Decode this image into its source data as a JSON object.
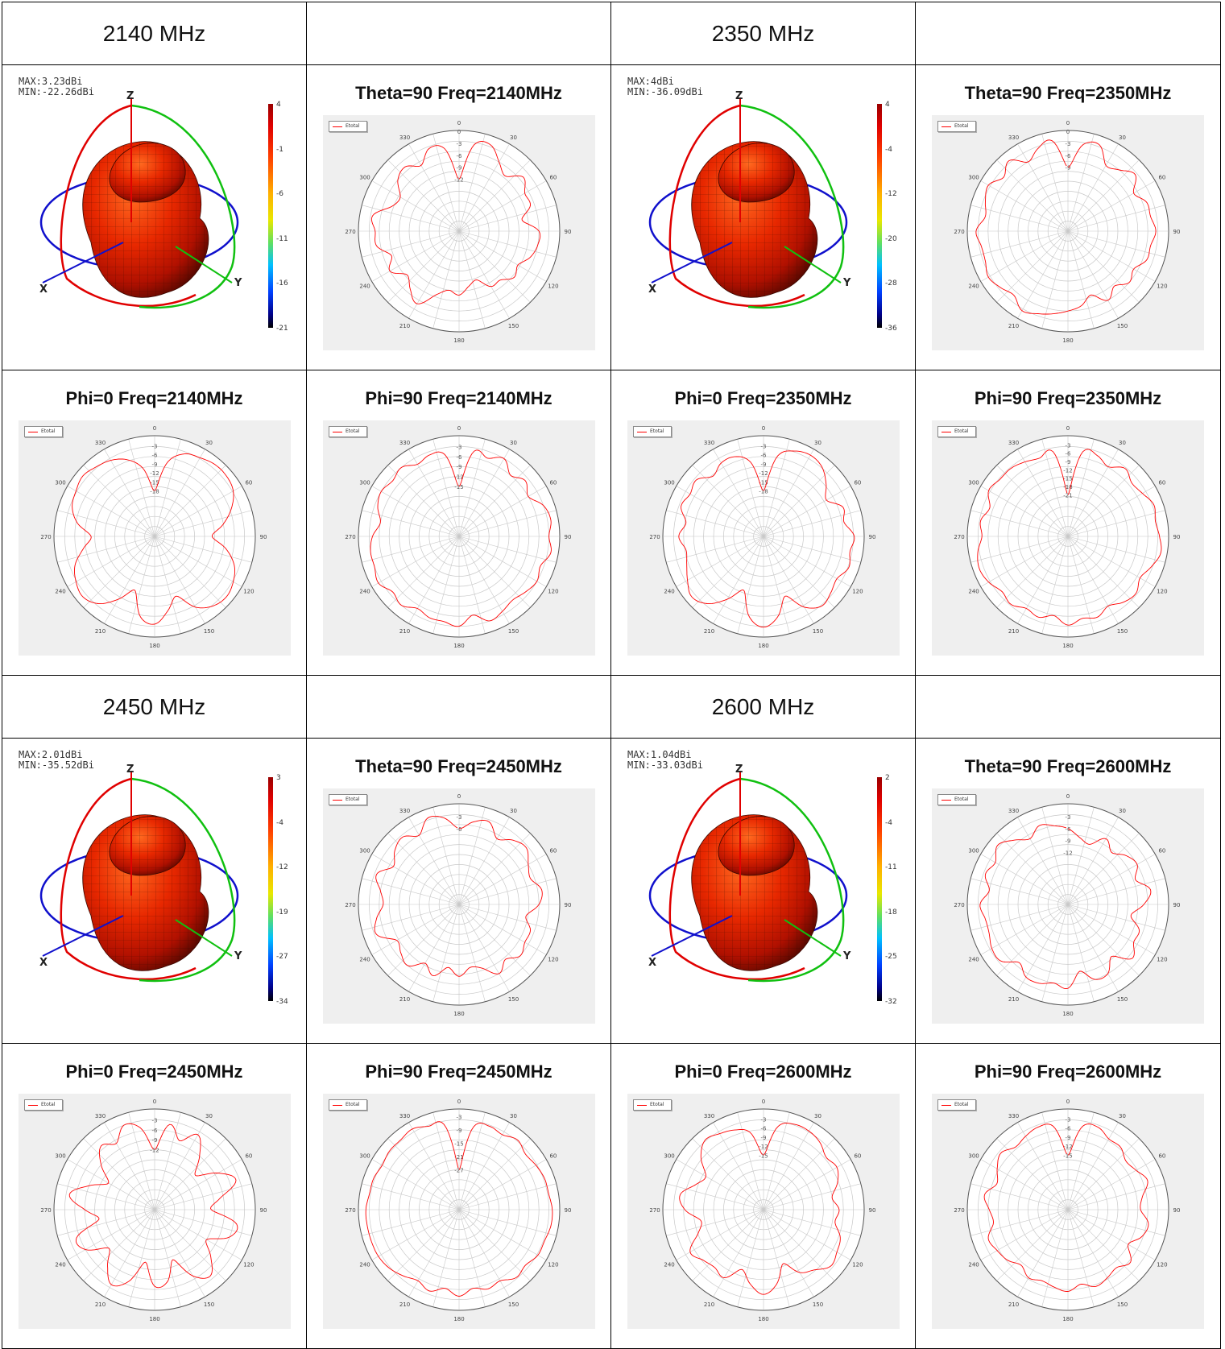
{
  "page": {
    "bands": [
      {
        "freq_label": "2140 MHz",
        "maxmin": [
          "MAX:3.23dBi",
          "MIN:-22.26dBi"
        ],
        "colorbar_ticks": [
          "4",
          "-1",
          "-6",
          "-11",
          "-16",
          "-21"
        ]
      },
      {
        "freq_label": "2350 MHz",
        "maxmin": [
          "MAX:4dBi",
          "MIN:-36.09dBi"
        ],
        "colorbar_ticks": [
          "4",
          "-4",
          "-12",
          "-20",
          "-28",
          "-36"
        ]
      },
      {
        "freq_label": "2450 MHz",
        "maxmin": [
          "MAX:2.01dBi",
          "MIN:-35.52dBi"
        ],
        "colorbar_ticks": [
          "3",
          "-4",
          "-12",
          "-19",
          "-27",
          "-34"
        ]
      },
      {
        "freq_label": "2600 MHz",
        "maxmin": [
          "MAX:1.04dBi",
          "MIN:-33.03dBi"
        ],
        "colorbar_ticks": [
          "2",
          "-4",
          "-11",
          "-18",
          "-25",
          "-32"
        ]
      }
    ],
    "axis_labels_3d": [
      "Z",
      "X",
      "Y"
    ],
    "colors": {
      "trace": "#ff0000",
      "plot_bg": "#efefef",
      "grid": "#c8c8c8",
      "z_axis": "#e00000",
      "x_axis": "#1010cc",
      "y_axis": "#10c010"
    }
  },
  "chart_data": [
    {
      "type": "line",
      "polar": true,
      "title": "Theta=90 Freq=2140MHz",
      "legend": "Etotal",
      "angle_ticks": [
        "0",
        "30",
        "60",
        "90",
        "120",
        "150",
        "180",
        "210",
        "240",
        "270",
        "300",
        "330"
      ],
      "r_ticks": [
        "0",
        "-3",
        "-6",
        "-9",
        "-12"
      ],
      "r_max": 0,
      "r_min": -25,
      "series": [
        {
          "name": "Etotal",
          "values": [
            -12,
            -3,
            -2,
            -5,
            -7,
            -4,
            -6,
            -6,
            -9,
            -5,
            -5,
            -6,
            -8,
            -7,
            -9,
            -9,
            -12,
            -11,
            -9,
            -10,
            -8,
            -4,
            -6,
            -8,
            -5,
            -7,
            -4,
            -4,
            -3,
            -7,
            -8,
            -5,
            -4,
            -6,
            -3,
            -4,
            -12
          ]
        }
      ]
    },
    {
      "type": "line",
      "polar": true,
      "title": "Theta=90 Freq=2350MHz",
      "legend": "Etotal",
      "angle_ticks": [
        "0",
        "30",
        "60",
        "90",
        "120",
        "150",
        "180",
        "210",
        "240",
        "270",
        "300",
        "330"
      ],
      "r_ticks": [
        "0",
        "-3",
        "-6",
        "-9"
      ],
      "r_max": 0,
      "r_min": -25,
      "series": [
        {
          "name": "Etotal",
          "values": [
            -9,
            -3,
            -2,
            -6,
            -5,
            -3,
            -6,
            -4,
            -4,
            -3,
            -4,
            -4,
            -6,
            -5,
            -7,
            -5,
            -8,
            -6,
            -5,
            -4,
            -3,
            -2,
            -4,
            -3,
            -2,
            -3,
            -3,
            -2,
            -4,
            -3,
            -2,
            -4,
            -2,
            -5,
            -3,
            -2,
            -9
          ]
        }
      ]
    },
    {
      "type": "line",
      "polar": true,
      "title": "Phi=0 Freq=2140MHz",
      "legend": "Etotal",
      "angle_ticks": [
        "0",
        "30",
        "60",
        "90",
        "120",
        "150",
        "180",
        "210",
        "240",
        "270",
        "300",
        "330"
      ],
      "r_ticks": [
        "-3",
        "-6",
        "-9",
        "-12",
        "-15",
        "-18"
      ],
      "r_max": 0,
      "r_min": -33,
      "series": [
        {
          "name": "Etotal",
          "values": [
            -18,
            -8,
            -4,
            -3,
            -2,
            -2,
            -3,
            -6,
            -10,
            -14,
            -9,
            -5,
            -3,
            -2,
            -3,
            -6,
            -12,
            -8,
            -4,
            -6,
            -14,
            -9,
            -4,
            -2,
            -3,
            -5,
            -9,
            -12,
            -7,
            -4,
            -3,
            -2,
            -3,
            -4,
            -6,
            -10,
            -18
          ]
        }
      ]
    },
    {
      "type": "line",
      "polar": true,
      "title": "Phi=90 Freq=2140MHz",
      "legend": "Etotal",
      "angle_ticks": [
        "0",
        "30",
        "60",
        "90",
        "120",
        "150",
        "180",
        "210",
        "240",
        "270",
        "300",
        "330"
      ],
      "r_ticks": [
        "-3",
        "-6",
        "-9",
        "-12",
        "-15"
      ],
      "r_max": 0,
      "r_min": -30,
      "series": [
        {
          "name": "Etotal",
          "values": [
            -15,
            -4,
            -5,
            -3,
            -6,
            -4,
            -6,
            -3,
            -2,
            -3,
            -2,
            -4,
            -3,
            -4,
            -5,
            -4,
            -3,
            -6,
            -3,
            -4,
            -4,
            -5,
            -3,
            -4,
            -2,
            -3,
            -3,
            -4,
            -6,
            -4,
            -3,
            -4,
            -3,
            -5,
            -4,
            -5,
            -15
          ]
        }
      ]
    },
    {
      "type": "line",
      "polar": true,
      "title": "Phi=0 Freq=2350MHz",
      "legend": "Etotal",
      "angle_ticks": [
        "0",
        "30",
        "60",
        "90",
        "120",
        "150",
        "180",
        "210",
        "240",
        "270",
        "300",
        "330"
      ],
      "r_ticks": [
        "-3",
        "-6",
        "-9",
        "-12",
        "-15",
        "-18"
      ],
      "r_max": 0,
      "r_min": -33,
      "series": [
        {
          "name": "Etotal",
          "values": [
            -18,
            -6,
            -3,
            -2,
            -3,
            -6,
            -9,
            -5,
            -6,
            -3,
            -4,
            -3,
            -5,
            -4,
            -3,
            -6,
            -12,
            -6,
            -3,
            -6,
            -14,
            -9,
            -4,
            -2,
            -4,
            -6,
            -7,
            -5,
            -7,
            -4,
            -5,
            -4,
            -7,
            -5,
            -5,
            -8,
            -18
          ]
        }
      ]
    },
    {
      "type": "line",
      "polar": true,
      "title": "Phi=90 Freq=2350MHz",
      "legend": "Etotal",
      "angle_ticks": [
        "0",
        "30",
        "60",
        "90",
        "120",
        "150",
        "180",
        "210",
        "240",
        "270",
        "300",
        "330"
      ],
      "r_ticks": [
        "-3",
        "-6",
        "-9",
        "-12",
        "-15",
        "-18",
        "-21"
      ],
      "r_max": 0,
      "r_min": -36,
      "series": [
        {
          "name": "Etotal",
          "values": [
            -21,
            -5,
            -5,
            -7,
            -4,
            -6,
            -5,
            -3,
            -4,
            -3,
            -2,
            -4,
            -6,
            -4,
            -5,
            -7,
            -5,
            -6,
            -4,
            -7,
            -5,
            -6,
            -4,
            -5,
            -3,
            -2,
            -3,
            -5,
            -4,
            -6,
            -3,
            -4,
            -4,
            -5,
            -6,
            -5,
            -21
          ]
        }
      ]
    },
    {
      "type": "line",
      "polar": true,
      "title": "Theta=90 Freq=2450MHz",
      "legend": "Etotal",
      "angle_ticks": [
        "0",
        "30",
        "60",
        "90",
        "120",
        "150",
        "180",
        "210",
        "240",
        "270",
        "300",
        "330"
      ],
      "r_ticks": [
        "-3",
        "-6"
      ],
      "r_max": 0,
      "r_min": -25,
      "series": [
        {
          "name": "Etotal",
          "values": [
            -6,
            -4,
            -3,
            -6,
            -4,
            -3,
            -5,
            -6,
            -4,
            -5,
            -8,
            -6,
            -6,
            -5,
            -7,
            -5,
            -8,
            -9,
            -7,
            -9,
            -6,
            -8,
            -5,
            -6,
            -7,
            -3,
            -4,
            -6,
            -5,
            -3,
            -6,
            -4,
            -3,
            -5,
            -2,
            -3,
            -6
          ]
        }
      ]
    },
    {
      "type": "line",
      "polar": true,
      "title": "Theta=90 Freq=2600MHz",
      "legend": "Etotal",
      "angle_ticks": [
        "0",
        "30",
        "60",
        "90",
        "120",
        "150",
        "180",
        "210",
        "240",
        "270",
        "300",
        "330"
      ],
      "r_ticks": [
        "-3",
        "-6",
        "-9",
        "-12"
      ],
      "r_max": 0,
      "r_min": -25,
      "series": [
        {
          "name": "Etotal",
          "values": [
            -6,
            -8,
            -9,
            -6,
            -8,
            -6,
            -5,
            -7,
            -4,
            -6,
            -9,
            -6,
            -6,
            -4,
            -8,
            -5,
            -5,
            -8,
            -4,
            -5,
            -4,
            -4,
            -6,
            -3,
            -3,
            -4,
            -4,
            -3,
            -5,
            -3,
            -4,
            -2,
            -4,
            -6,
            -4,
            -5,
            -6
          ]
        }
      ]
    },
    {
      "type": "line",
      "polar": true,
      "title": "Phi=0 Freq=2450MHz",
      "legend": "Etotal",
      "angle_ticks": [
        "0",
        "30",
        "60",
        "90",
        "120",
        "150",
        "180",
        "210",
        "240",
        "270",
        "300",
        "330"
      ],
      "r_ticks": [
        "-3",
        "-6",
        "-9",
        "-12"
      ],
      "r_max": 0,
      "r_min": -30,
      "series": [
        {
          "name": "Etotal",
          "values": [
            -12,
            -4,
            -8,
            -4,
            -9,
            -14,
            -8,
            -4,
            -10,
            -13,
            -5,
            -6,
            -12,
            -8,
            -4,
            -7,
            -14,
            -8,
            -7,
            -14,
            -7,
            -4,
            -8,
            -12,
            -6,
            -5,
            -13,
            -9,
            -4,
            -9,
            -14,
            -9,
            -5,
            -7,
            -3,
            -5,
            -12
          ]
        }
      ]
    },
    {
      "type": "line",
      "polar": true,
      "title": "Phi=90 Freq=2450MHz",
      "legend": "Etotal",
      "angle_ticks": [
        "0",
        "30",
        "60",
        "90",
        "120",
        "150",
        "180",
        "210",
        "240",
        "270",
        "300",
        "330"
      ],
      "r_ticks": [
        "-3",
        "-9",
        "-15",
        "-21",
        "-27"
      ],
      "r_max": 0,
      "r_min": -45,
      "series": [
        {
          "name": "Etotal",
          "values": [
            -27,
            -7,
            -5,
            -6,
            -4,
            -6,
            -5,
            -4,
            -4,
            -3,
            -3,
            -4,
            -4,
            -6,
            -5,
            -8,
            -7,
            -9,
            -6,
            -9,
            -6,
            -8,
            -6,
            -4,
            -3,
            -3,
            -3,
            -3,
            -4,
            -4,
            -5,
            -4,
            -4,
            -3,
            -5,
            -6,
            -27
          ]
        }
      ]
    },
    {
      "type": "line",
      "polar": true,
      "title": "Phi=0 Freq=2600MHz",
      "legend": "Etotal",
      "angle_ticks": [
        "0",
        "30",
        "60",
        "90",
        "120",
        "150",
        "180",
        "210",
        "240",
        "270",
        "300",
        "330"
      ],
      "r_ticks": [
        "-3",
        "-6",
        "-9",
        "-12",
        "-15"
      ],
      "r_max": 0,
      "r_min": -33,
      "series": [
        {
          "name": "Etotal",
          "values": [
            -15,
            -5,
            -3,
            -3,
            -4,
            -6,
            -5,
            -7,
            -10,
            -8,
            -9,
            -6,
            -5,
            -4,
            -7,
            -9,
            -14,
            -8,
            -5,
            -8,
            -12,
            -7,
            -8,
            -7,
            -5,
            -10,
            -12,
            -7,
            -5,
            -9,
            -11,
            -6,
            -3,
            -4,
            -5,
            -7,
            -15
          ]
        }
      ]
    },
    {
      "type": "line",
      "polar": true,
      "title": "Phi=90 Freq=2600MHz",
      "legend": "Etotal",
      "angle_ticks": [
        "0",
        "30",
        "60",
        "90",
        "120",
        "150",
        "180",
        "210",
        "240",
        "270",
        "300",
        "330"
      ],
      "r_ticks": [
        "-3",
        "-6",
        "-9",
        "-12",
        "-15"
      ],
      "r_max": 0,
      "r_min": -33,
      "series": [
        {
          "name": "Etotal",
          "values": [
            -15,
            -5,
            -4,
            -6,
            -6,
            -8,
            -7,
            -5,
            -8,
            -9,
            -6,
            -7,
            -10,
            -6,
            -8,
            -7,
            -6,
            -8,
            -6,
            -7,
            -8,
            -7,
            -9,
            -7,
            -6,
            -5,
            -8,
            -7,
            -5,
            -8,
            -6,
            -4,
            -6,
            -5,
            -4,
            -5,
            -15
          ]
        }
      ]
    }
  ]
}
